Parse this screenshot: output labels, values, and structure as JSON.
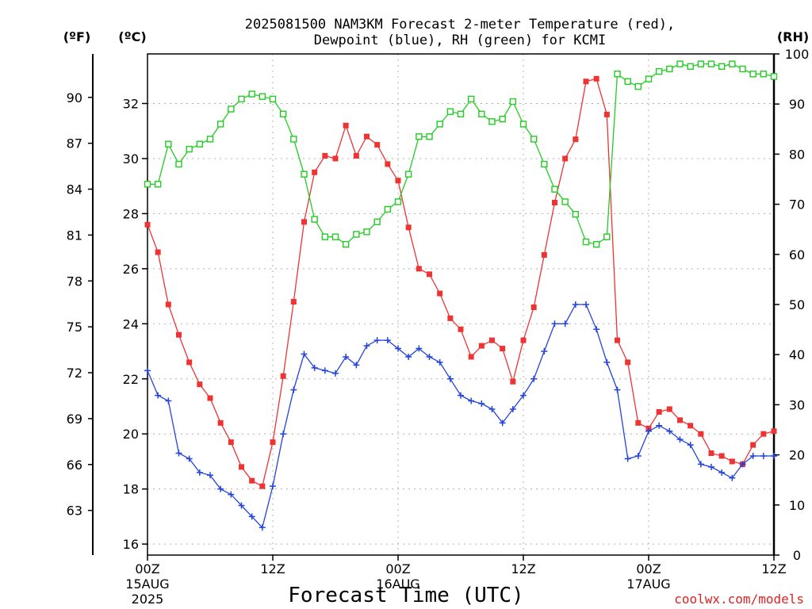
{
  "chart_data": {
    "type": "line",
    "title_line1": "2025081500 NAM3KM Forecast 2-meter Temperature (red),",
    "title_line2": "Dewpoint (blue), RH (green) for KCMI",
    "xlabel": "Forecast Time (UTC)",
    "credit": "coolwx.com/models",
    "x_unit": "hours from 2025-08-15 00Z",
    "xlim": [
      0,
      60
    ],
    "x_ticks": [
      {
        "hour": 0,
        "label": "00Z",
        "date": "15AUG",
        "year": "2025"
      },
      {
        "hour": 12,
        "label": "12Z",
        "date": "",
        "year": ""
      },
      {
        "hour": 24,
        "label": "00Z",
        "date": "16AUG",
        "year": ""
      },
      {
        "hour": 36,
        "label": "12Z",
        "date": "",
        "year": ""
      },
      {
        "hour": 48,
        "label": "00Z",
        "date": "17AUG",
        "year": ""
      },
      {
        "hour": 60,
        "label": "12Z",
        "date": "",
        "year": ""
      }
    ],
    "y_left_c": {
      "unit_label": "(ºC)",
      "ylim": [
        15.6,
        33.8
      ],
      "ticks": [
        16,
        18,
        20,
        22,
        24,
        26,
        28,
        30,
        32
      ]
    },
    "y_left_f": {
      "unit_label": "(ºF)",
      "ticks": [
        63,
        66,
        69,
        72,
        75,
        78,
        81,
        84,
        87,
        90
      ]
    },
    "y_right_rh": {
      "unit_label": "(RH)",
      "ylim": [
        0,
        100
      ],
      "ticks": [
        0,
        10,
        20,
        30,
        40,
        50,
        60,
        70,
        80,
        90,
        100
      ]
    },
    "grid": true,
    "colors": {
      "temperature": "#ee3333",
      "dewpoint": "#2244dd",
      "rh": "#22cc22",
      "credit": "#dd2222"
    },
    "series": [
      {
        "key": "temperature",
        "axis": "celsius",
        "marker": "filled-square",
        "x": [
          0,
          1,
          2,
          3,
          4,
          5,
          6,
          7,
          8,
          9,
          10,
          11,
          12,
          13,
          14,
          15,
          16,
          17,
          18,
          19,
          20,
          21,
          22,
          23,
          24,
          25,
          26,
          27,
          28,
          29,
          30,
          31,
          32,
          33,
          34,
          35,
          36,
          37,
          38,
          39,
          40,
          41,
          42,
          43,
          44,
          45,
          46,
          47,
          48,
          49,
          50,
          51,
          52,
          53,
          54,
          55,
          56,
          57,
          58,
          59,
          60
        ],
        "values": [
          27.6,
          26.6,
          24.7,
          23.6,
          22.6,
          21.8,
          21.3,
          20.4,
          19.7,
          18.8,
          18.3,
          18.1,
          19.7,
          22.1,
          24.8,
          27.7,
          29.5,
          30.1,
          30.0,
          31.2,
          30.1,
          30.8,
          30.5,
          29.8,
          29.2,
          27.5,
          26.0,
          25.8,
          25.1,
          24.2,
          23.8,
          22.8,
          23.2,
          23.4,
          23.1,
          21.9,
          23.4,
          24.6,
          26.5,
          28.4,
          30.0,
          30.7,
          32.8,
          32.9,
          31.6,
          23.4,
          22.6,
          20.4,
          20.2,
          20.8,
          20.9,
          20.5,
          20.3,
          20.0,
          19.3,
          19.2,
          19.0,
          18.9,
          19.6,
          20.0,
          20.1
        ]
      },
      {
        "key": "dewpoint",
        "axis": "celsius",
        "marker": "plus",
        "x": [
          0,
          1,
          2,
          3,
          4,
          5,
          6,
          7,
          8,
          9,
          10,
          11,
          12,
          13,
          14,
          15,
          16,
          17,
          18,
          19,
          20,
          21,
          22,
          23,
          24,
          25,
          26,
          27,
          28,
          29,
          30,
          31,
          32,
          33,
          34,
          35,
          36,
          37,
          38,
          39,
          40,
          41,
          42,
          43,
          44,
          45,
          46,
          47,
          48,
          49,
          50,
          51,
          52,
          53,
          54,
          55,
          56,
          57,
          58,
          59,
          60
        ],
        "values": [
          22.3,
          21.4,
          21.2,
          19.3,
          19.1,
          18.6,
          18.5,
          18.0,
          17.8,
          17.4,
          17.0,
          16.6,
          18.1,
          20.0,
          21.6,
          22.9,
          22.4,
          22.3,
          22.2,
          22.8,
          22.5,
          23.2,
          23.4,
          23.4,
          23.1,
          22.8,
          23.1,
          22.8,
          22.6,
          22.0,
          21.4,
          21.2,
          21.1,
          20.9,
          20.4,
          20.9,
          21.4,
          22.0,
          23.0,
          24.0,
          24.0,
          24.7,
          24.7,
          23.8,
          22.6,
          21.6,
          19.1,
          19.2,
          20.1,
          20.3,
          20.1,
          19.8,
          19.6,
          18.9,
          18.8,
          18.6,
          18.4,
          18.9,
          19.2,
          19.2,
          19.2
        ]
      },
      {
        "key": "rh",
        "axis": "rh",
        "marker": "open-square",
        "x": [
          0,
          1,
          2,
          3,
          4,
          5,
          6,
          7,
          8,
          9,
          10,
          11,
          12,
          13,
          14,
          15,
          16,
          17,
          18,
          19,
          20,
          21,
          22,
          23,
          24,
          25,
          26,
          27,
          28,
          29,
          30,
          31,
          32,
          33,
          34,
          35,
          36,
          37,
          38,
          39,
          40,
          41,
          42,
          43,
          44,
          45,
          46,
          47,
          48,
          49,
          50,
          51,
          52,
          53,
          54,
          55,
          56,
          57,
          58,
          59,
          60
        ],
        "values": [
          74,
          74,
          82,
          78,
          81,
          82,
          83,
          86,
          89,
          91,
          92,
          91.5,
          91,
          88,
          83,
          76,
          67,
          63.5,
          63.5,
          62,
          64,
          64.5,
          66.5,
          69,
          70.5,
          76,
          83.5,
          83.5,
          86,
          88.5,
          88,
          91,
          88,
          86.5,
          87,
          90.5,
          86,
          83,
          78,
          73,
          70.5,
          68,
          62.5,
          62,
          63.5,
          96,
          94.5,
          93.5,
          95,
          96.5,
          97,
          98,
          97.5,
          98,
          98,
          97.5,
          98,
          97,
          96,
          96,
          95.5
        ]
      }
    ]
  }
}
